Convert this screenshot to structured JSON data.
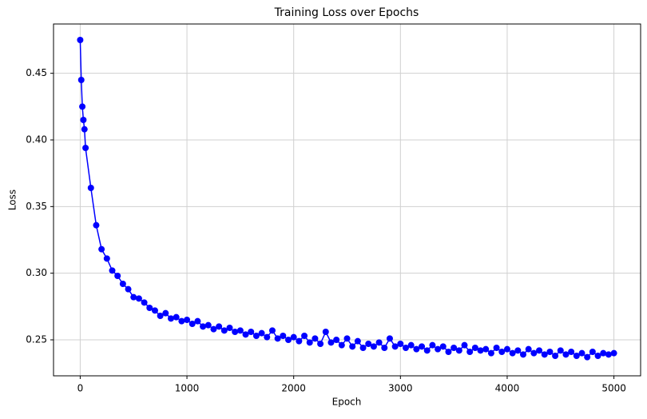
{
  "chart_data": {
    "type": "line",
    "title": "Training Loss over Epochs",
    "x_label": "Epoch",
    "y_label": "Loss",
    "x": [
      0,
      10,
      20,
      30,
      40,
      50,
      100,
      150,
      200,
      250,
      300,
      350,
      400,
      450,
      500,
      550,
      600,
      650,
      700,
      750,
      800,
      850,
      900,
      950,
      1000,
      1050,
      1100,
      1150,
      1200,
      1250,
      1300,
      1350,
      1400,
      1450,
      1500,
      1550,
      1600,
      1650,
      1700,
      1750,
      1800,
      1850,
      1900,
      1950,
      2000,
      2050,
      2100,
      2150,
      2200,
      2250,
      2300,
      2350,
      2400,
      2450,
      2500,
      2550,
      2600,
      2650,
      2700,
      2750,
      2800,
      2850,
      2900,
      2950,
      3000,
      3050,
      3100,
      3150,
      3200,
      3250,
      3300,
      3350,
      3400,
      3450,
      3500,
      3550,
      3600,
      3650,
      3700,
      3750,
      3800,
      3850,
      3900,
      3950,
      4000,
      4050,
      4100,
      4150,
      4200,
      4250,
      4300,
      4350,
      4400,
      4450,
      4500,
      4550,
      4600,
      4650,
      4700,
      4750,
      4800,
      4850,
      4900,
      4950,
      5000
    ],
    "series": [
      {
        "name": "Loss",
        "color": "#0000ff",
        "values": [
          0.475,
          0.445,
          0.425,
          0.415,
          0.408,
          0.394,
          0.364,
          0.336,
          0.318,
          0.311,
          0.302,
          0.298,
          0.292,
          0.288,
          0.282,
          0.281,
          0.278,
          0.274,
          0.272,
          0.268,
          0.27,
          0.266,
          0.267,
          0.264,
          0.265,
          0.262,
          0.264,
          0.26,
          0.261,
          0.258,
          0.26,
          0.257,
          0.259,
          0.256,
          0.257,
          0.254,
          0.256,
          0.253,
          0.255,
          0.252,
          0.257,
          0.251,
          0.253,
          0.25,
          0.252,
          0.249,
          0.253,
          0.248,
          0.251,
          0.247,
          0.256,
          0.248,
          0.25,
          0.246,
          0.251,
          0.245,
          0.249,
          0.244,
          0.247,
          0.245,
          0.248,
          0.244,
          0.251,
          0.245,
          0.247,
          0.244,
          0.246,
          0.243,
          0.245,
          0.242,
          0.246,
          0.243,
          0.245,
          0.241,
          0.244,
          0.242,
          0.246,
          0.241,
          0.244,
          0.242,
          0.243,
          0.24,
          0.244,
          0.241,
          0.243,
          0.24,
          0.242,
          0.239,
          0.243,
          0.24,
          0.242,
          0.239,
          0.241,
          0.238,
          0.242,
          0.239,
          0.241,
          0.238,
          0.24,
          0.237,
          0.241,
          0.238,
          0.24,
          0.239,
          0.24
        ]
      }
    ],
    "xlim": [
      -250,
      5250
    ],
    "ylim": [
      0.223,
      0.487
    ],
    "xticks": [
      0,
      1000,
      2000,
      3000,
      4000,
      5000
    ],
    "yticks": [
      0.25,
      {
        "value": 0.3,
        "label": "0.30"
      },
      0.35,
      {
        "value": 0.4,
        "label": "0.40"
      },
      0.45
    ],
    "grid": true
  }
}
